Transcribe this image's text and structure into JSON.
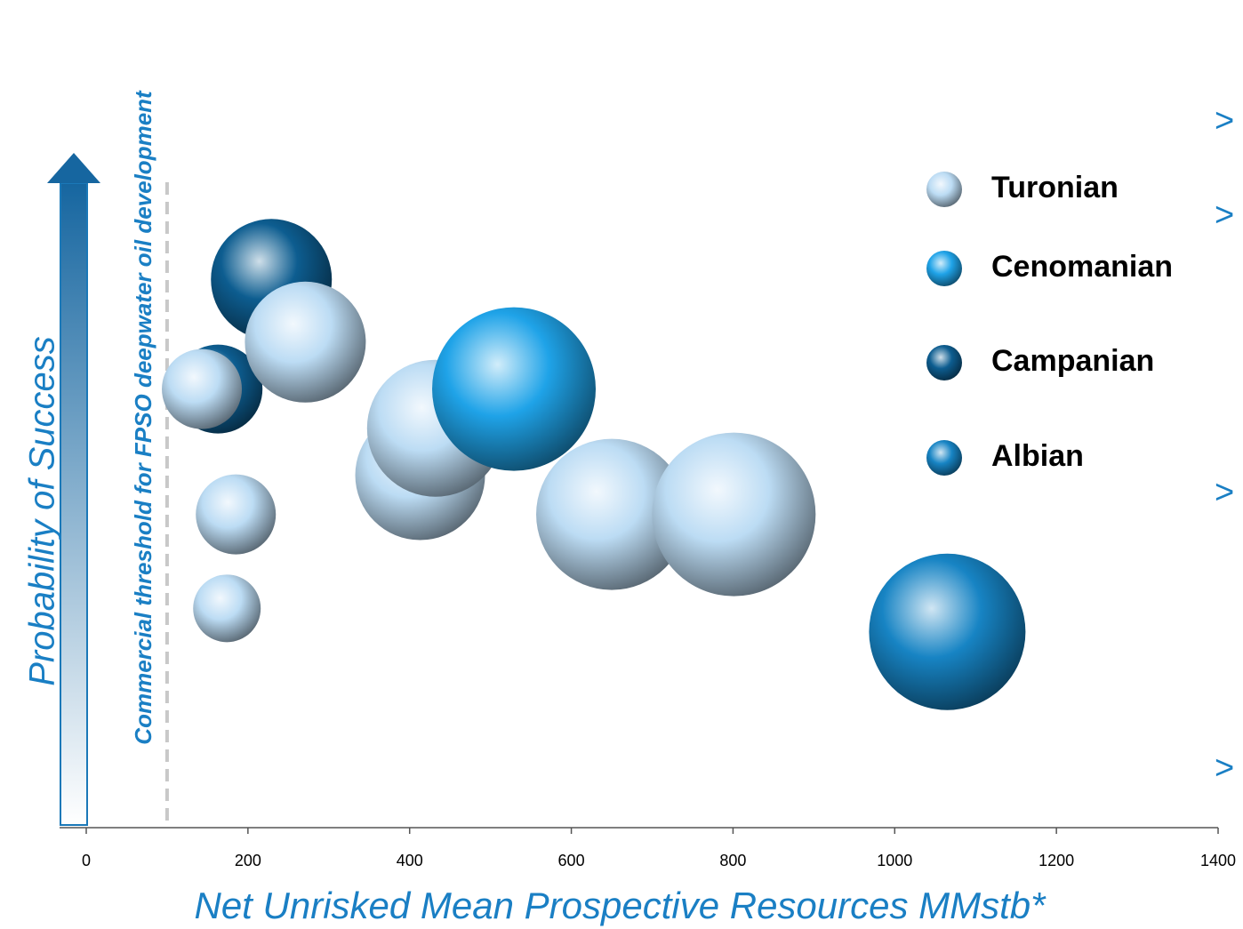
{
  "chart_data": {
    "type": "bubble",
    "x_label": "Net Unrisked Mean Prospective Resources MMstb*",
    "y_label": "Probability of Success",
    "threshold_label": "Commercial threshold for FPSO deepwater oil development",
    "threshold_x": 100,
    "xlim": [
      0,
      1400
    ],
    "xticks": [
      0,
      200,
      400,
      600,
      800,
      1000,
      1200,
      1400
    ],
    "ylim": [
      0,
      1
    ],
    "legend": "right",
    "edge_marks": [
      ">",
      ">",
      ">",
      ">"
    ],
    "series": [
      {
        "name": "Turonian",
        "color": "#bcdcf4",
        "x": [
          143,
          271,
          185,
          174,
          413,
          432,
          650,
          801
        ],
        "y": [
          0.56,
          0.62,
          0.4,
          0.28,
          0.45,
          0.51,
          0.4,
          0.4
        ],
        "sizes": [
          45,
          68,
          45,
          38,
          73,
          77,
          85,
          92
        ]
      },
      {
        "name": "Cenomanian",
        "color": "#1fa3e8",
        "x": [
          529
        ],
        "y": [
          0.56
        ],
        "sizes": [
          92
        ]
      },
      {
        "name": "Campanian",
        "color": "#0d5d90",
        "x": [
          229,
          163
        ],
        "y": [
          0.7,
          0.56
        ],
        "sizes": [
          68,
          50
        ]
      },
      {
        "name": "Albian",
        "color": "#1784c4",
        "x": [
          1065
        ],
        "y": [
          0.25
        ],
        "sizes": [
          88
        ]
      }
    ]
  }
}
